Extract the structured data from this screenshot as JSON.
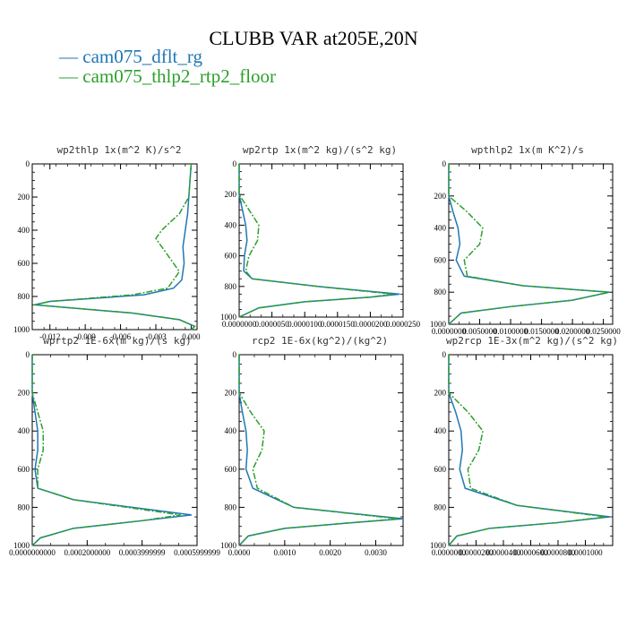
{
  "title": "CLUBB VAR at205E,20N",
  "legend": [
    {
      "label": "— cam075_dflt_rg",
      "color": "#1f77b4"
    },
    {
      "label": "— cam075_thlp2_rtp2_floor",
      "color": "#2ca02c"
    }
  ],
  "chart_data": [
    {
      "type": "line",
      "title": "wp2thlp  1x(m^2 K)/s^2",
      "xlim": [
        -0.0135,
        0.0005
      ],
      "ylim": [
        1000,
        0
      ],
      "xticks": [
        -0.012,
        -0.009,
        -0.006,
        -0.003,
        0.0
      ],
      "xtick_labels": [
        "-0.012",
        "-0.009",
        "-0.006",
        "-0.003",
        "0.000"
      ],
      "yticks": [
        0,
        200,
        400,
        600,
        800,
        1000
      ],
      "series": [
        {
          "name": "cam075_dflt_rg",
          "color": "#1f77b4",
          "points": [
            [
              0.0,
              0
            ],
            [
              -0.0001,
              100
            ],
            [
              -0.0002,
              200
            ],
            [
              -0.0003,
              300
            ],
            [
              -0.0005,
              400
            ],
            [
              -0.0007,
              500
            ],
            [
              -0.0006,
              600
            ],
            [
              -0.0008,
              700
            ],
            [
              -0.0015,
              750
            ],
            [
              -0.004,
              790
            ],
            [
              -0.012,
              830
            ],
            [
              -0.0133,
              850
            ],
            [
              -0.01,
              870
            ],
            [
              -0.005,
              900
            ],
            [
              -0.001,
              940
            ],
            [
              0.0003,
              980
            ],
            [
              0.0,
              1000
            ]
          ]
        },
        {
          "name": "cam075_thlp2_rtp2_floor",
          "color": "#2ca02c",
          "points": [
            [
              0.0,
              0
            ],
            [
              -0.0001,
              100
            ],
            [
              -0.0002,
              200
            ],
            [
              -0.001,
              300
            ],
            [
              -0.0025,
              400
            ],
            [
              -0.003,
              450
            ],
            [
              -0.002,
              550
            ],
            [
              -0.001,
              650
            ],
            [
              -0.002,
              750
            ],
            [
              -0.005,
              790
            ],
            [
              -0.012,
              830
            ],
            [
              -0.0133,
              850
            ],
            [
              -0.01,
              870
            ],
            [
              -0.005,
              900
            ],
            [
              -0.001,
              940
            ],
            [
              0.0003,
              980
            ],
            [
              0.0,
              1000
            ]
          ]
        }
      ]
    },
    {
      "type": "line",
      "title": "wp2rtp  1x(m^2 kg)/(s^2 kg)",
      "xlim": [
        0.0,
        2.5e-05
      ],
      "ylim": [
        1000,
        0
      ],
      "xticks": [
        0.0,
        5e-06,
        1e-05,
        1.5e-05,
        2e-05,
        2.5e-05
      ],
      "xtick_labels": [
        "0.0000000",
        "0.0000050",
        "0.0000100",
        "0.0000150",
        "0.0000200",
        "0.0000250"
      ],
      "yticks": [
        0,
        200,
        400,
        600,
        800,
        1000
      ],
      "series": [
        {
          "name": "cam075_dflt_rg",
          "color": "#1f77b4",
          "points": [
            [
              0.0,
              0
            ],
            [
              0.0,
              200
            ],
            [
              5e-07,
              300
            ],
            [
              1e-06,
              400
            ],
            [
              1.2e-06,
              500
            ],
            [
              8e-07,
              600
            ],
            [
              7e-07,
              700
            ],
            [
              2e-06,
              750
            ],
            [
              1.2e-05,
              800
            ],
            [
              2.45e-05,
              850
            ],
            [
              2e-05,
              870
            ],
            [
              1e-05,
              900
            ],
            [
              3e-06,
              940
            ],
            [
              0.0,
              1000
            ]
          ]
        },
        {
          "name": "cam075_thlp2_rtp2_floor",
          "color": "#2ca02c",
          "points": [
            [
              0.0,
              0
            ],
            [
              0.0,
              200
            ],
            [
              1.5e-06,
              300
            ],
            [
              3e-06,
              400
            ],
            [
              2.8e-06,
              500
            ],
            [
              1.5e-06,
              600
            ],
            [
              1e-06,
              700
            ],
            [
              2e-06,
              750
            ],
            [
              1.2e-05,
              800
            ],
            [
              2.35e-05,
              850
            ],
            [
              2e-05,
              870
            ],
            [
              1e-05,
              900
            ],
            [
              3e-06,
              940
            ],
            [
              0.0,
              1000
            ]
          ]
        }
      ]
    },
    {
      "type": "line",
      "title": "wpthlp2  1x(m K^2)/s",
      "xlim": [
        0.0,
        0.0265
      ],
      "ylim": [
        1000,
        0
      ],
      "xticks": [
        0.0,
        0.005,
        0.01,
        0.015,
        0.02,
        0.025
      ],
      "xtick_labels": [
        "0.0000000",
        "0.0050000",
        "0.0100000",
        "0.0150000",
        "0.0200000",
        "0.0250000"
      ],
      "yticks": [
        0,
        200,
        400,
        600,
        800,
        1000
      ],
      "series": [
        {
          "name": "cam075_dflt_rg",
          "color": "#1f77b4",
          "points": [
            [
              0.0,
              0
            ],
            [
              0.0,
              200
            ],
            [
              0.0007,
              300
            ],
            [
              0.0015,
              400
            ],
            [
              0.0018,
              500
            ],
            [
              0.0012,
              600
            ],
            [
              0.0025,
              700
            ],
            [
              0.012,
              760
            ],
            [
              0.026,
              800
            ],
            [
              0.02,
              850
            ],
            [
              0.01,
              890
            ],
            [
              0.002,
              930
            ],
            [
              0.0,
              1000
            ]
          ]
        },
        {
          "name": "cam075_thlp2_rtp2_floor",
          "color": "#2ca02c",
          "points": [
            [
              0.0,
              0
            ],
            [
              0.0,
              200
            ],
            [
              0.003,
              300
            ],
            [
              0.0055,
              400
            ],
            [
              0.005,
              500
            ],
            [
              0.0025,
              600
            ],
            [
              0.003,
              700
            ],
            [
              0.012,
              760
            ],
            [
              0.026,
              800
            ],
            [
              0.02,
              850
            ],
            [
              0.01,
              890
            ],
            [
              0.002,
              930
            ],
            [
              0.0,
              1000
            ]
          ]
        }
      ]
    },
    {
      "type": "line",
      "title": "wprtp2  1E-6x(m kg)/(s kg)",
      "xlim": [
        0.0,
        0.0006
      ],
      "ylim": [
        1000,
        0
      ],
      "xticks": [
        0.0,
        0.0002,
        0.0004,
        0.0006
      ],
      "xtick_labels": [
        "0.0000000000",
        "0.0002000000",
        "0.0003999999",
        "0.0005999999"
      ],
      "yticks": [
        0,
        200,
        400,
        600,
        800,
        1000
      ],
      "series": [
        {
          "name": "cam075_dflt_rg",
          "color": "#1f77b4",
          "points": [
            [
              0.0,
              0
            ],
            [
              0.0,
              200
            ],
            [
              1e-05,
              300
            ],
            [
              2e-05,
              400
            ],
            [
              2e-05,
              500
            ],
            [
              1e-05,
              600
            ],
            [
              2e-05,
              700
            ],
            [
              0.00015,
              760
            ],
            [
              0.00058,
              840
            ],
            [
              0.0004,
              870
            ],
            [
              0.00015,
              910
            ],
            [
              3e-05,
              960
            ],
            [
              0.0,
              1000
            ]
          ]
        },
        {
          "name": "cam075_thlp2_rtp2_floor",
          "color": "#2ca02c",
          "points": [
            [
              0.0,
              0
            ],
            [
              0.0,
              200
            ],
            [
              2e-05,
              300
            ],
            [
              4e-05,
              400
            ],
            [
              4e-05,
              500
            ],
            [
              2e-05,
              600
            ],
            [
              2e-05,
              700
            ],
            [
              0.00015,
              760
            ],
            [
              0.00054,
              840
            ],
            [
              0.0004,
              870
            ],
            [
              0.00015,
              910
            ],
            [
              3e-05,
              960
            ],
            [
              0.0,
              1000
            ]
          ]
        }
      ]
    },
    {
      "type": "line",
      "title": "rcp2  1E-6x(kg^2)/(kg^2)",
      "xlim": [
        0.0,
        0.0036
      ],
      "ylim": [
        1000,
        0
      ],
      "xticks": [
        0.0,
        0.001,
        0.002,
        0.003
      ],
      "xtick_labels": [
        "0.0000",
        "0.0010",
        "0.0020",
        "0.0030"
      ],
      "yticks": [
        0,
        200,
        400,
        600,
        800,
        1000
      ],
      "series": [
        {
          "name": "cam075_dflt_rg",
          "color": "#1f77b4",
          "points": [
            [
              0.0,
              0
            ],
            [
              0.0,
              200
            ],
            [
              7e-05,
              300
            ],
            [
              0.00015,
              400
            ],
            [
              0.00018,
              500
            ],
            [
              0.00015,
              600
            ],
            [
              0.0003,
              700
            ],
            [
              0.0012,
              800
            ],
            [
              0.0036,
              860
            ],
            [
              0.0025,
              880
            ],
            [
              0.001,
              910
            ],
            [
              0.0002,
              950
            ],
            [
              0.0,
              1000
            ]
          ]
        },
        {
          "name": "cam075_thlp2_rtp2_floor",
          "color": "#2ca02c",
          "points": [
            [
              0.0,
              0
            ],
            [
              0.0,
              200
            ],
            [
              0.00025,
              300
            ],
            [
              0.00055,
              400
            ],
            [
              0.0005,
              500
            ],
            [
              0.0003,
              600
            ],
            [
              0.0004,
              700
            ],
            [
              0.0012,
              800
            ],
            [
              0.0035,
              860
            ],
            [
              0.0025,
              880
            ],
            [
              0.001,
              910
            ],
            [
              0.0002,
              950
            ],
            [
              0.0,
              1000
            ]
          ]
        }
      ]
    },
    {
      "type": "line",
      "title": "wp2rcp  1E-3x(m^2 kg)/(s^2 kg)",
      "xlim": [
        0.0,
        0.00012
      ],
      "ylim": [
        1000,
        0
      ],
      "xticks": [
        0.0,
        2e-05,
        4e-05,
        6e-05,
        8e-05,
        0.0001
      ],
      "xtick_labels": [
        "0.0000000",
        "0.0000200",
        "0.0000400",
        "0.0000600",
        "0.0000800",
        "0.0001000"
      ],
      "yticks": [
        0,
        200,
        400,
        600,
        800,
        1000
      ],
      "series": [
        {
          "name": "cam075_dflt_rg",
          "color": "#1f77b4",
          "points": [
            [
              0.0,
              0
            ],
            [
              0.0,
              200
            ],
            [
              5e-06,
              300
            ],
            [
              9e-06,
              400
            ],
            [
              1e-05,
              500
            ],
            [
              8e-06,
              600
            ],
            [
              1.2e-05,
              700
            ],
            [
              5e-05,
              790
            ],
            [
              0.000118,
              850
            ],
            [
              8e-05,
              880
            ],
            [
              3e-05,
              910
            ],
            [
              6e-06,
              950
            ],
            [
              0.0,
              1000
            ]
          ]
        },
        {
          "name": "cam075_thlp2_rtp2_floor",
          "color": "#2ca02c",
          "points": [
            [
              0.0,
              0
            ],
            [
              0.0,
              200
            ],
            [
              1.4e-05,
              300
            ],
            [
              2.5e-05,
              400
            ],
            [
              2.2e-05,
              500
            ],
            [
              1.4e-05,
              600
            ],
            [
              1.6e-05,
              700
            ],
            [
              5e-05,
              790
            ],
            [
              0.000115,
              850
            ],
            [
              8e-05,
              880
            ],
            [
              3e-05,
              910
            ],
            [
              6e-06,
              950
            ],
            [
              0.0,
              1000
            ]
          ]
        }
      ]
    }
  ]
}
